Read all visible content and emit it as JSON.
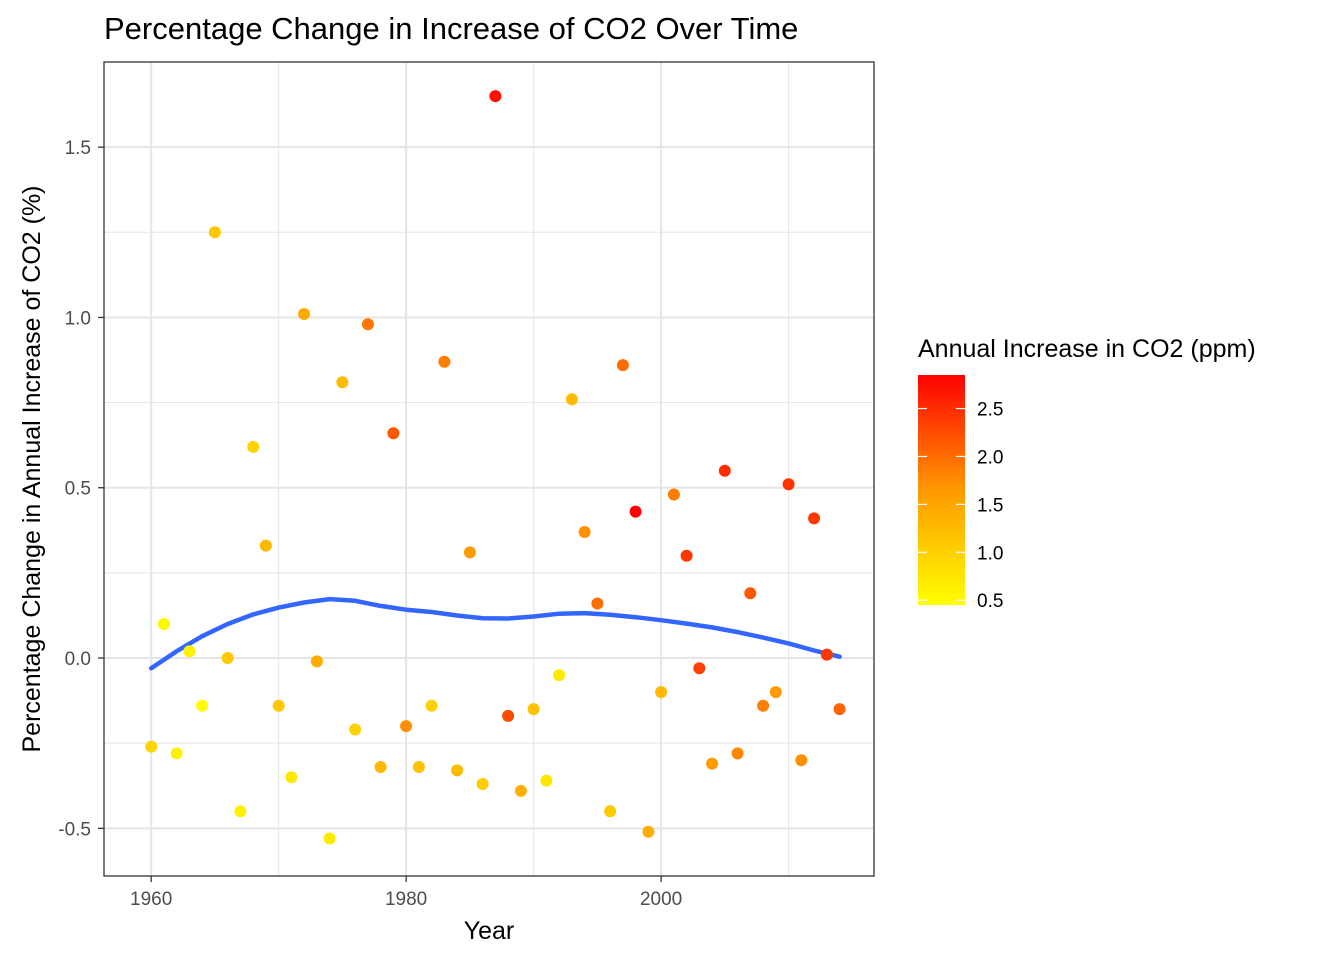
{
  "chart_data": {
    "type": "scatter",
    "title": "Percentage Change in Increase of CO2 Over Time",
    "xlabel": "Year",
    "ylabel": "Percentage Change in Annual Increase of CO2 (%)",
    "xlim": [
      1956.3,
      2016.7
    ],
    "ylim": [
      -0.64,
      1.75
    ],
    "x_ticks": [
      1960,
      1980,
      2000
    ],
    "x_tick_labels": [
      "1960",
      "1980",
      "2000"
    ],
    "y_ticks": [
      -0.5,
      0.0,
      0.5,
      1.0,
      1.5
    ],
    "y_tick_labels": [
      "-0.5",
      "0.0",
      "0.5",
      "1.0",
      "1.5"
    ],
    "grid": true,
    "colors": {
      "low": "#FFFF00",
      "high": "#FF0000",
      "trend_line": "#3366FF",
      "grid": "#e5e5e5",
      "border": "#333333"
    },
    "legend": {
      "title": "Annual Increase in CO2 (ppm)",
      "placement": "right",
      "min": 0.45,
      "max": 2.85,
      "ticks": [
        0.5,
        1.0,
        1.5,
        2.0,
        2.5
      ],
      "tick_labels": [
        "0.5",
        "1.0",
        "1.5",
        "2.0",
        "2.5"
      ]
    },
    "points": [
      {
        "x": 1960,
        "y": -0.26,
        "c": 0.94
      },
      {
        "x": 1961,
        "y": 0.1,
        "c": 0.52
      },
      {
        "x": 1962,
        "y": -0.28,
        "c": 0.6
      },
      {
        "x": 1963,
        "y": 0.02,
        "c": 0.62
      },
      {
        "x": 1964,
        "y": -0.14,
        "c": 0.5
      },
      {
        "x": 1965,
        "y": 1.25,
        "c": 1.1
      },
      {
        "x": 1966,
        "y": 0.0,
        "c": 1.1
      },
      {
        "x": 1967,
        "y": -0.45,
        "c": 0.6
      },
      {
        "x": 1968,
        "y": 0.62,
        "c": 0.97
      },
      {
        "x": 1969,
        "y": 0.33,
        "c": 1.29
      },
      {
        "x": 1970,
        "y": -0.14,
        "c": 1.11
      },
      {
        "x": 1971,
        "y": -0.35,
        "c": 0.72
      },
      {
        "x": 1972,
        "y": 1.01,
        "c": 1.45
      },
      {
        "x": 1973,
        "y": -0.01,
        "c": 1.44
      },
      {
        "x": 1974,
        "y": -0.53,
        "c": 0.68
      },
      {
        "x": 1975,
        "y": 0.81,
        "c": 1.23
      },
      {
        "x": 1976,
        "y": -0.21,
        "c": 0.97
      },
      {
        "x": 1977,
        "y": 0.98,
        "c": 1.92
      },
      {
        "x": 1978,
        "y": -0.32,
        "c": 1.3
      },
      {
        "x": 1979,
        "y": 0.66,
        "c": 2.16
      },
      {
        "x": 1980,
        "y": -0.2,
        "c": 1.73
      },
      {
        "x": 1981,
        "y": -0.32,
        "c": 1.17
      },
      {
        "x": 1982,
        "y": -0.14,
        "c": 1.0
      },
      {
        "x": 1983,
        "y": 0.87,
        "c": 1.87
      },
      {
        "x": 1984,
        "y": -0.33,
        "c": 1.25
      },
      {
        "x": 1985,
        "y": 0.31,
        "c": 1.64
      },
      {
        "x": 1986,
        "y": -0.37,
        "c": 1.04
      },
      {
        "x": 1987,
        "y": 1.65,
        "c": 2.72
      },
      {
        "x": 1988,
        "y": -0.17,
        "c": 2.27
      },
      {
        "x": 1989,
        "y": -0.39,
        "c": 1.38
      },
      {
        "x": 1990,
        "y": -0.15,
        "c": 1.17
      },
      {
        "x": 1991,
        "y": -0.36,
        "c": 0.75
      },
      {
        "x": 1992,
        "y": -0.05,
        "c": 0.71
      },
      {
        "x": 1993,
        "y": 0.76,
        "c": 1.25
      },
      {
        "x": 1994,
        "y": 0.37,
        "c": 1.71
      },
      {
        "x": 1995,
        "y": 0.16,
        "c": 1.98
      },
      {
        "x": 1996,
        "y": -0.45,
        "c": 1.08
      },
      {
        "x": 1997,
        "y": 0.86,
        "c": 2.01
      },
      {
        "x": 1998,
        "y": 0.43,
        "c": 2.87
      },
      {
        "x": 1999,
        "y": -0.51,
        "c": 1.41
      },
      {
        "x": 2000,
        "y": -0.1,
        "c": 1.27
      },
      {
        "x": 2001,
        "y": 0.48,
        "c": 1.88
      },
      {
        "x": 2002,
        "y": 0.3,
        "c": 2.43
      },
      {
        "x": 2003,
        "y": -0.03,
        "c": 2.35
      },
      {
        "x": 2004,
        "y": -0.31,
        "c": 1.62
      },
      {
        "x": 2005,
        "y": 0.55,
        "c": 2.5
      },
      {
        "x": 2006,
        "y": -0.28,
        "c": 1.8
      },
      {
        "x": 2007,
        "y": 0.19,
        "c": 2.15
      },
      {
        "x": 2008,
        "y": -0.14,
        "c": 1.85
      },
      {
        "x": 2009,
        "y": -0.1,
        "c": 1.63
      },
      {
        "x": 2010,
        "y": 0.51,
        "c": 2.45
      },
      {
        "x": 2011,
        "y": -0.3,
        "c": 1.71
      },
      {
        "x": 2012,
        "y": 0.41,
        "c": 2.41
      },
      {
        "x": 2013,
        "y": 0.01,
        "c": 2.43
      },
      {
        "x": 2014,
        "y": -0.15,
        "c": 2.06
      }
    ],
    "trend": [
      {
        "x": 1960,
        "y": -0.03
      },
      {
        "x": 1962,
        "y": 0.02
      },
      {
        "x": 1964,
        "y": 0.064
      },
      {
        "x": 1966,
        "y": 0.1
      },
      {
        "x": 1968,
        "y": 0.128
      },
      {
        "x": 1970,
        "y": 0.148
      },
      {
        "x": 1972,
        "y": 0.163
      },
      {
        "x": 1974,
        "y": 0.173
      },
      {
        "x": 1976,
        "y": 0.168
      },
      {
        "x": 1978,
        "y": 0.153
      },
      {
        "x": 1980,
        "y": 0.142
      },
      {
        "x": 1982,
        "y": 0.135
      },
      {
        "x": 1984,
        "y": 0.125
      },
      {
        "x": 1986,
        "y": 0.117
      },
      {
        "x": 1988,
        "y": 0.116
      },
      {
        "x": 1990,
        "y": 0.122
      },
      {
        "x": 1992,
        "y": 0.13
      },
      {
        "x": 1994,
        "y": 0.132
      },
      {
        "x": 1996,
        "y": 0.127
      },
      {
        "x": 1998,
        "y": 0.12
      },
      {
        "x": 2000,
        "y": 0.111
      },
      {
        "x": 2002,
        "y": 0.101
      },
      {
        "x": 2004,
        "y": 0.09
      },
      {
        "x": 2006,
        "y": 0.076
      },
      {
        "x": 2008,
        "y": 0.06
      },
      {
        "x": 2010,
        "y": 0.043
      },
      {
        "x": 2012,
        "y": 0.022
      },
      {
        "x": 2014,
        "y": 0.004
      }
    ]
  }
}
